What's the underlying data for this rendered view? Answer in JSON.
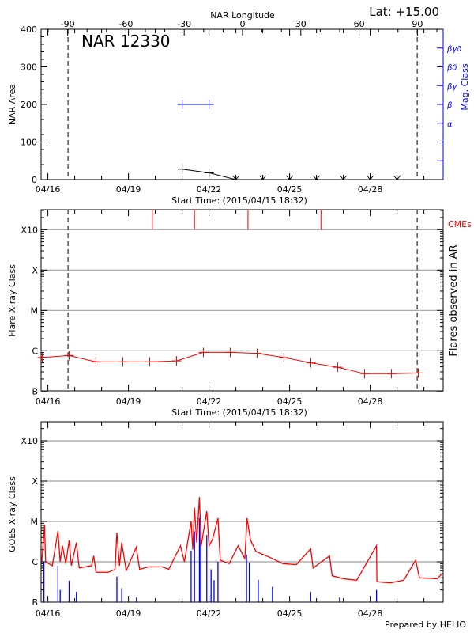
{
  "header": {
    "lat_label": "Lat: +15.00",
    "footer": "Prepared by HELIO"
  },
  "colors": {
    "flare": "#ff0000",
    "mag": "#0000ff",
    "area": "#000000",
    "grid": "#a0a0a0",
    "goes_short": "#0000ff",
    "goes_long": "#ff0000"
  },
  "chart_data": [
    {
      "type": "line",
      "title": "NAR 12330",
      "top_axis_label": "NAR Longitude",
      "top_ticks": [
        -90,
        -60,
        -30,
        0,
        30,
        60,
        90
      ],
      "xlabel": "Start Time: (2015/04/15 18:32)",
      "x_ticks": [
        "04/16",
        "04/19",
        "04/22",
        "04/25",
        "04/28"
      ],
      "ylabel": "NAR Area",
      "ylim": [
        0,
        400
      ],
      "y_ticks": [
        0,
        100,
        200,
        300,
        400
      ],
      "right_axis_label": "Mag. Class",
      "right_ticks": [
        "α",
        "β",
        "βγ",
        "βδ",
        "βγδ"
      ],
      "limb_markers": [
        "04/16 18:00",
        "04/29 18:00"
      ],
      "area_series": [
        {
          "t": "04/21 00:00",
          "v": 28
        },
        {
          "t": "04/22 00:00",
          "v": 18
        },
        {
          "t": "04/23 00:00",
          "v": 0
        },
        {
          "t": "04/24 00:00",
          "v": 0
        },
        {
          "t": "04/25 00:00",
          "v": 0
        },
        {
          "t": "04/26 00:00",
          "v": 0
        },
        {
          "t": "04/27 00:00",
          "v": 0
        },
        {
          "t": "04/28 00:00",
          "v": 0
        },
        {
          "t": "04/29 00:00",
          "v": 0
        }
      ],
      "mag_series": [
        {
          "t": "04/21 00:00",
          "class": "β"
        },
        {
          "t": "04/22 00:00",
          "class": "β"
        }
      ]
    },
    {
      "type": "line",
      "xlabel": "Start Time: (2015/04/15 18:32)",
      "x_ticks": [
        "04/16",
        "04/19",
        "04/22",
        "04/25",
        "04/28"
      ],
      "ylabel": "Flare X-ray Class",
      "right_axis_label": "Flares observed in AR",
      "y_scale": "log",
      "y_ticks": [
        "B",
        "C",
        "M",
        "X",
        "X10"
      ],
      "grid": true,
      "limb_markers": [
        "04/16 18:00",
        "04/29 18:00"
      ],
      "cme_label": "CMEs",
      "cmes": [
        "04/19 21:20",
        "04/21 11:00",
        "04/23 10:50",
        "04/26 04:00"
      ],
      "flare_series": [
        {
          "t": "04/15 19:00",
          "flux": 6.8e-07
        },
        {
          "t": "04/16 19:00",
          "flux": 7.6e-07
        },
        {
          "t": "04/17 19:00",
          "flux": 5.3e-07
        },
        {
          "t": "04/18 19:00",
          "flux": 5.3e-07
        },
        {
          "t": "04/19 19:00",
          "flux": 5.3e-07
        },
        {
          "t": "04/20 19:00",
          "flux": 5.6e-07
        },
        {
          "t": "04/21 19:00",
          "flux": 9.1e-07
        },
        {
          "t": "04/22 19:00",
          "flux": 9.1e-07
        },
        {
          "t": "04/23 19:00",
          "flux": 8.6e-07
        },
        {
          "t": "04/24 19:00",
          "flux": 6.8e-07
        },
        {
          "t": "04/25 19:00",
          "flux": 5e-07
        },
        {
          "t": "04/26 19:00",
          "flux": 3.9e-07
        },
        {
          "t": "04/27 19:00",
          "flux": 2.7e-07
        },
        {
          "t": "04/28 19:00",
          "flux": 2.7e-07
        },
        {
          "t": "04/29 19:00",
          "flux": 2.8e-07
        }
      ]
    },
    {
      "type": "line",
      "x_ticks": [
        "04/16",
        "04/19",
        "04/22",
        "04/25",
        "04/28"
      ],
      "ylabel": "GOES X-ray Class",
      "y_scale": "log",
      "y_ticks": [
        "B",
        "C",
        "M",
        "X",
        "X10"
      ],
      "grid": true,
      "long_channel": [
        [
          "04/15 18:32",
          1e-06
        ],
        [
          "04/15 21:00",
          8.3e-06
        ],
        [
          "04/15 22:00",
          1e-06
        ],
        [
          "04/16 04:00",
          8e-07
        ],
        [
          "04/16 09:00",
          5.7e-06
        ],
        [
          "04/16 11:00",
          1e-06
        ],
        [
          "04/16 13:00",
          2.5e-06
        ],
        [
          "04/16 16:00",
          9e-07
        ],
        [
          "04/16 19:00",
          3.4e-06
        ],
        [
          "04/16 21:00",
          8e-07
        ],
        [
          "04/17 01:30",
          3e-06
        ],
        [
          "04/17 04:00",
          7e-07
        ],
        [
          "04/17 15:00",
          8e-07
        ],
        [
          "04/17 17:00",
          1.4e-06
        ],
        [
          "04/17 19:00",
          5.5e-07
        ],
        [
          "04/18 06:00",
          5.5e-07
        ],
        [
          "04/18 12:00",
          6.5e-07
        ],
        [
          "04/18 13:40",
          5.3e-06
        ],
        [
          "04/18 16:00",
          8e-07
        ],
        [
          "04/18 18:00",
          3e-06
        ],
        [
          "04/18 22:00",
          6e-07
        ],
        [
          "04/19 07:00",
          2.3e-06
        ],
        [
          "04/19 10:00",
          6.5e-07
        ],
        [
          "04/19 18:00",
          7.5e-07
        ],
        [
          "04/20 06:00",
          7.5e-07
        ],
        [
          "04/20 12:00",
          6.5e-07
        ],
        [
          "04/20 22:30",
          2.5e-06
        ],
        [
          "04/21 02:00",
          1e-06
        ],
        [
          "04/21 08:00",
          1e-05
        ],
        [
          "04/21 09:30",
          2e-06
        ],
        [
          "04/21 11:00",
          2.2e-05
        ],
        [
          "04/21 13:00",
          3e-06
        ],
        [
          "04/21 15:25",
          4e-05
        ],
        [
          "04/21 17:00",
          2.5e-06
        ],
        [
          "04/21 22:00",
          1.8e-05
        ],
        [
          "04/22 00:00",
          2.5e-06
        ],
        [
          "04/22 03:00",
          3.5e-06
        ],
        [
          "04/22 08:00",
          1.2e-05
        ],
        [
          "04/22 10:00",
          1.1e-06
        ],
        [
          "04/22 18:00",
          9e-07
        ],
        [
          "04/23 02:00",
          2.5e-06
        ],
        [
          "04/23 08:00",
          1.2e-06
        ],
        [
          "04/23 10:00",
          1.2e-05
        ],
        [
          "04/23 13:00",
          3.5e-06
        ],
        [
          "04/23 18:00",
          1.8e-06
        ],
        [
          "04/24 06:00",
          1.3e-06
        ],
        [
          "04/24 18:00",
          9e-07
        ],
        [
          "04/25 06:00",
          8.5e-07
        ],
        [
          "04/25 18:50",
          2.1e-06
        ],
        [
          "04/25 21:00",
          7e-07
        ],
        [
          "04/26 11:40",
          1.4e-06
        ],
        [
          "04/26 14:00",
          4.5e-07
        ],
        [
          "04/27 00:00",
          3.8e-07
        ],
        [
          "04/27 12:00",
          3.5e-07
        ],
        [
          "04/28 05:40",
          2.5e-06
        ],
        [
          "04/28 06:00",
          3.2e-07
        ],
        [
          "04/28 18:00",
          3e-07
        ],
        [
          "04/29 06:00",
          3.5e-07
        ],
        [
          "04/29 16:40",
          1.1e-06
        ],
        [
          "04/29 20:00",
          4e-07
        ],
        [
          "04/30 12:00",
          3.8e-07
        ],
        [
          "04/30 16:00",
          5e-07
        ]
      ],
      "short_channel": [
        [
          "04/15 20:30",
          1e-06
        ],
        [
          "04/16 09:00",
          8e-07
        ],
        [
          "04/16 11:00",
          2e-07
        ],
        [
          "04/16 19:00",
          3.4e-07
        ],
        [
          "04/17 01:30",
          1.8e-07
        ],
        [
          "04/18 13:40",
          4.3e-07
        ],
        [
          "04/18 18:00",
          2.2e-07
        ],
        [
          "04/19 07:10",
          1.3e-07
        ],
        [
          "04/21 08:00",
          1.9e-06
        ],
        [
          "04/21 11:00",
          5.7e-06
        ],
        [
          "04/21 15:25",
          1.2e-05
        ],
        [
          "04/21 16:30",
          6e-06
        ],
        [
          "04/21 22:00",
          4.6e-06
        ],
        [
          "04/22 01:50",
          6.5e-07
        ],
        [
          "04/22 04:30",
          3.5e-07
        ],
        [
          "04/22 08:00",
          1e-06
        ],
        [
          "04/23 09:30",
          1.5e-06
        ],
        [
          "04/23 12:00",
          9.5e-07
        ],
        [
          "04/23 20:00",
          3.6e-07
        ],
        [
          "04/24 08:40",
          2.4e-07
        ],
        [
          "04/25 18:50",
          1.8e-07
        ],
        [
          "04/26 20:40",
          1.3e-07
        ],
        [
          "04/28 05:40",
          2e-07
        ]
      ]
    }
  ]
}
